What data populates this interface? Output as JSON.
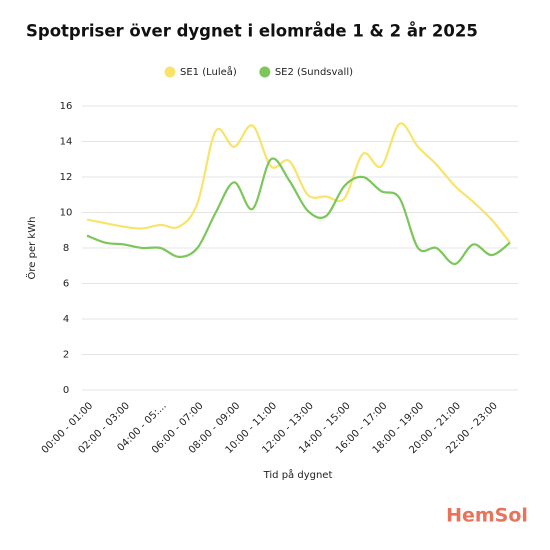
{
  "chart_data": {
    "type": "line",
    "title": "Spotpriser över dygnet i elområde 1 & 2 år 2025",
    "x_label": "Tid på dygnet",
    "y_label": "Öre per kWh",
    "categories": [
      "00:00 - 01:00",
      null,
      "02:00 - 03:00",
      null,
      "04:00 - 05:...",
      null,
      "06:00 - 07:00",
      null,
      "08:00 - 09:00",
      null,
      "10:00 - 11:00",
      null,
      "12:00 - 13:00",
      null,
      "14:00 - 15:00",
      null,
      "16:00 - 17:00",
      null,
      "18:00 - 19:00",
      null,
      "20:00 - 21:00",
      null,
      "22:00 - 23:00",
      null
    ],
    "series": [
      {
        "name": "SE1 (Luleå)",
        "color": "#f8e46a",
        "values": [
          9.6,
          9.4,
          9.2,
          9.1,
          9.3,
          9.2,
          10.5,
          14.6,
          13.7,
          14.9,
          12.6,
          12.9,
          11.0,
          10.9,
          10.8,
          13.3,
          12.6,
          15.0,
          13.7,
          12.7,
          11.5,
          10.6,
          9.6,
          8.3
        ]
      },
      {
        "name": "SE2 (Sundsvall)",
        "color": "#7cc65a",
        "values": [
          8.7,
          8.3,
          8.2,
          8.0,
          8.0,
          7.5,
          8.0,
          10.0,
          11.7,
          10.2,
          13.0,
          11.8,
          10.1,
          9.8,
          11.5,
          12.0,
          11.2,
          10.8,
          8.0,
          8.0,
          7.1,
          8.2,
          7.6,
          8.3
        ]
      }
    ],
    "ylim": [
      0,
      16
    ],
    "yticks": [
      0,
      2,
      4,
      6,
      8,
      10,
      12,
      14,
      16
    ],
    "grid": true,
    "legend": "top",
    "logo": "HemSol"
  }
}
